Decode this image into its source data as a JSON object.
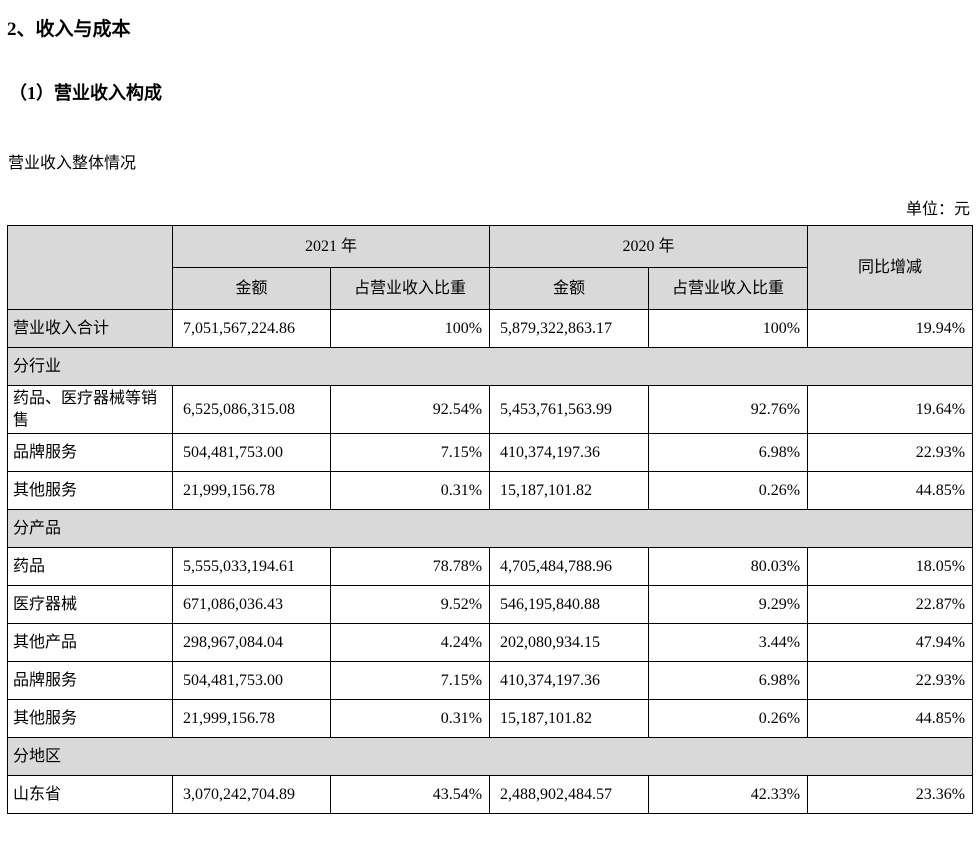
{
  "page": {
    "title": "2、收入与成本",
    "subtitle": "（1）营业收入构成",
    "section_caption": "营业收入整体情况",
    "unit_label": "单位：元"
  },
  "table": {
    "colors": {
      "header_bg": "#d9d9d9",
      "border": "#000000"
    },
    "header": {
      "year_2021": "2021 年",
      "year_2020": "2020 年",
      "yoy": "同比增减",
      "amount_2021": "金额",
      "proportion_2021": "占营业收入比重",
      "amount_2020": "金额",
      "proportion_2020": "占营业收入比重"
    },
    "rows": [
      {
        "type": "data",
        "label_gray": true,
        "label": "营业收入合计",
        "a2021": "7,051,567,224.86",
        "p2021": "100%",
        "a2020": "5,879,322,863.17",
        "p2020": "100%",
        "yoy": "19.94%"
      },
      {
        "type": "section",
        "label": "分行业"
      },
      {
        "type": "data",
        "label": "药品、医疗器械等销售",
        "a2021": "6,525,086,315.08",
        "p2021": "92.54%",
        "a2020": "5,453,761,563.99",
        "p2020": "92.76%",
        "yoy": "19.64%"
      },
      {
        "type": "data",
        "label": "品牌服务",
        "a2021": "504,481,753.00",
        "p2021": "7.15%",
        "a2020": "410,374,197.36",
        "p2020": "6.98%",
        "yoy": "22.93%"
      },
      {
        "type": "data",
        "label": "其他服务",
        "a2021": "21,999,156.78",
        "p2021": "0.31%",
        "a2020": "15,187,101.82",
        "p2020": "0.26%",
        "yoy": "44.85%"
      },
      {
        "type": "section",
        "label": "分产品"
      },
      {
        "type": "data",
        "label": "药品",
        "a2021": "5,555,033,194.61",
        "p2021": "78.78%",
        "a2020": "4,705,484,788.96",
        "p2020": "80.03%",
        "yoy": "18.05%"
      },
      {
        "type": "data",
        "label": "医疗器械",
        "a2021": "671,086,036.43",
        "p2021": "9.52%",
        "a2020": "546,195,840.88",
        "p2020": "9.29%",
        "yoy": "22.87%"
      },
      {
        "type": "data",
        "label": "其他产品",
        "a2021": "298,967,084.04",
        "p2021": "4.24%",
        "a2020": "202,080,934.15",
        "p2020": "3.44%",
        "yoy": "47.94%"
      },
      {
        "type": "data",
        "label": "品牌服务",
        "a2021": "504,481,753.00",
        "p2021": "7.15%",
        "a2020": "410,374,197.36",
        "p2020": "6.98%",
        "yoy": "22.93%"
      },
      {
        "type": "data",
        "label": "其他服务",
        "a2021": "21,999,156.78",
        "p2021": "0.31%",
        "a2020": "15,187,101.82",
        "p2020": "0.26%",
        "yoy": "44.85%"
      },
      {
        "type": "section",
        "label": "分地区"
      },
      {
        "type": "data",
        "label": "山东省",
        "a2021": "3,070,242,704.89",
        "p2021": "43.54%",
        "a2020": "2,488,902,484.57",
        "p2020": "42.33%",
        "yoy": "23.36%"
      }
    ]
  }
}
